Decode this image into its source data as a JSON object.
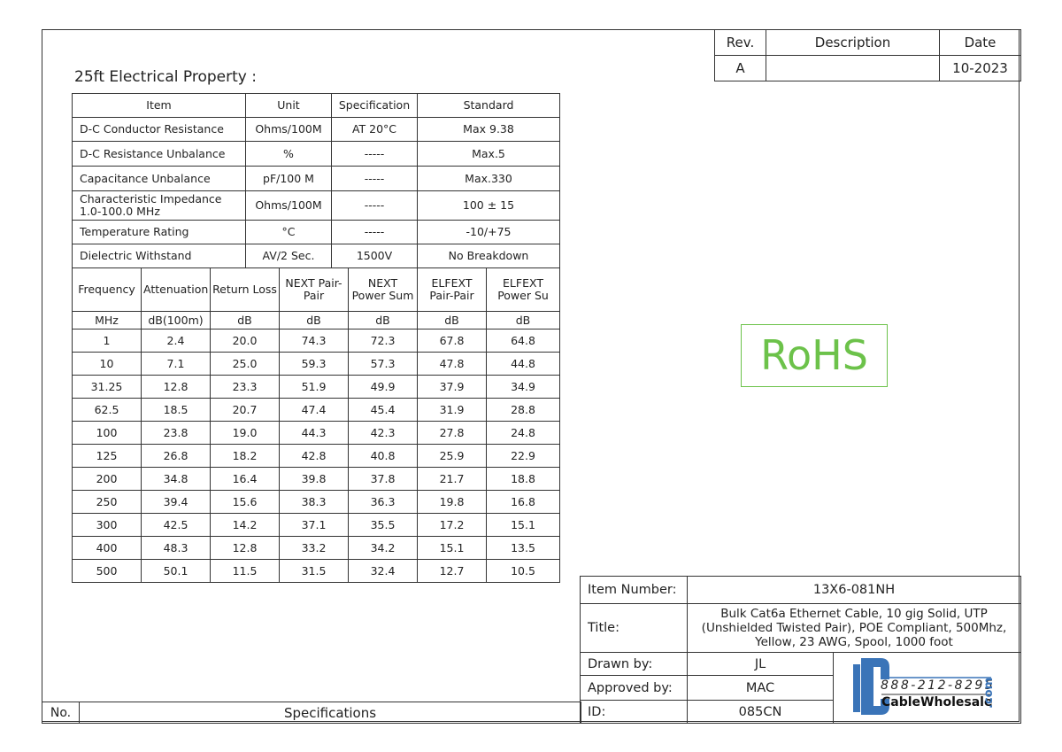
{
  "revision_table": {
    "headers": [
      "Rev.",
      "Description",
      "Date"
    ],
    "row": [
      "A",
      "",
      "10-2023"
    ]
  },
  "section_title": "25ft Electrical Property :",
  "electrical_table": {
    "headers": [
      "Item",
      "Unit",
      "Specification",
      "Standard"
    ],
    "rows": [
      [
        "D-C Conductor Resistance",
        "Ohms/100M",
        "AT 20°C",
        "Max 9.38"
      ],
      [
        "D-C Resistance Unbalance",
        "%",
        "-----",
        "Max.5"
      ],
      [
        "Capacitance Unbalance",
        "pF/100 M",
        "-----",
        "Max.330"
      ],
      [
        "Characteristic Impedance\n1.0-100.0 MHz",
        "Ohms/100M",
        "-----",
        "100 ± 15"
      ],
      [
        "Temperature Rating",
        "°C",
        "-----",
        "-10/+75"
      ],
      [
        "Dielectric Withstand",
        "AV/2 Sec.",
        "1500V",
        "No Breakdown"
      ]
    ]
  },
  "frequency_table": {
    "headers": [
      "Frequency",
      "Attenuation",
      "Return Loss",
      "NEXT Pair-Pair",
      "NEXT Power Sum",
      "ELFEXT Pair-Pair",
      "ELFEXT Power Su"
    ],
    "units": [
      "MHz",
      "dB(100m)",
      "dB",
      "dB",
      "dB",
      "dB",
      "dB"
    ],
    "rows": [
      [
        "1",
        "2.4",
        "20.0",
        "74.3",
        "72.3",
        "67.8",
        "64.8"
      ],
      [
        "10",
        "7.1",
        "25.0",
        "59.3",
        "57.3",
        "47.8",
        "44.8"
      ],
      [
        "31.25",
        "12.8",
        "23.3",
        "51.9",
        "49.9",
        "37.9",
        "34.9"
      ],
      [
        "62.5",
        "18.5",
        "20.7",
        "47.4",
        "45.4",
        "31.9",
        "28.8"
      ],
      [
        "100",
        "23.8",
        "19.0",
        "44.3",
        "42.3",
        "27.8",
        "24.8"
      ],
      [
        "125",
        "26.8",
        "18.2",
        "42.8",
        "40.8",
        "25.9",
        "22.9"
      ],
      [
        "200",
        "34.8",
        "16.4",
        "39.8",
        "37.8",
        "21.7",
        "18.8"
      ],
      [
        "250",
        "39.4",
        "15.6",
        "38.3",
        "36.3",
        "19.8",
        "16.8"
      ],
      [
        "300",
        "42.5",
        "14.2",
        "37.1",
        "35.5",
        "17.2",
        "15.1"
      ],
      [
        "400",
        "48.3",
        "12.8",
        "33.2",
        "34.2",
        "15.1",
        "13.5"
      ],
      [
        "500",
        "50.1",
        "11.5",
        "31.5",
        "32.4",
        "12.7",
        "10.5"
      ]
    ]
  },
  "rohs_label": "RoHS",
  "footer": {
    "no_label": "No.",
    "specifications_label": "Specifications"
  },
  "info_block": {
    "item_number_label": "Item Number:",
    "item_number": "13X6-081NH",
    "title_label": "Title:",
    "title": "Bulk Cat6a Ethernet Cable, 10 gig Solid, UTP (Unshielded Twisted Pair), POE Compliant, 500Mhz, Yellow, 23 AWG, Spool, 1000 foot",
    "drawn_by_label": "Drawn by:",
    "drawn_by": "JL",
    "approved_by_label": "Approved by:",
    "approved_by": "MAC",
    "id_label": "ID:",
    "id": "085CN"
  },
  "logo": {
    "phone": "888-212-8295",
    "name": "CableWholesale",
    "suffix": ".com",
    "color": "#3a74b8"
  }
}
